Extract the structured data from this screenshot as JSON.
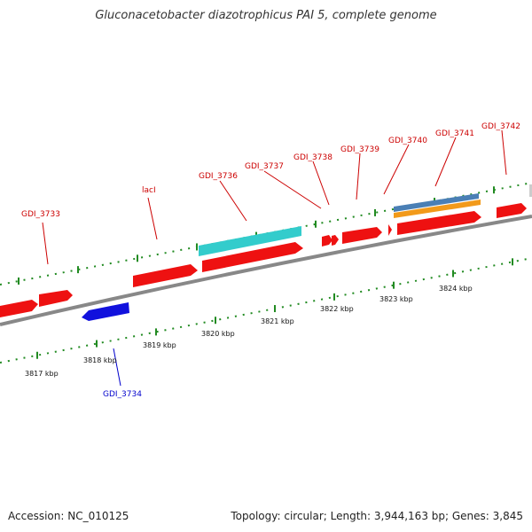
{
  "title": "Gluconacetobacter diazotrophicus PAI 5, complete genome",
  "footer": {
    "accession": "Accession: NC_010125",
    "summary": "Topology: circular; Length: 3,944,163 bp; Genes: 3,845"
  },
  "colors": {
    "forward_gene": "#ee1111",
    "reverse_gene": "#1111dd",
    "rna_gene": "#33cccc",
    "blue_feature": "#4a7fb5",
    "orange_feature": "#f29a1a",
    "backbone": "#888888",
    "tick": "#228b22",
    "forward_label": "#cc0000",
    "reverse_label": "#0000cc"
  },
  "scale_labels": [
    "3817 kbp",
    "3818 kbp",
    "3819 kbp",
    "3820 kbp",
    "3821 kbp",
    "3822 kbp",
    "3823 kbp",
    "3824 kbp"
  ],
  "gene_labels": [
    {
      "id": "gdi3733",
      "text": "GDI_3733",
      "strand": "forward"
    },
    {
      "id": "lacI",
      "text": "lacI",
      "strand": "forward"
    },
    {
      "id": "gdi3736",
      "text": "GDI_3736",
      "strand": "forward"
    },
    {
      "id": "gdi3737",
      "text": "GDI_3737",
      "strand": "forward"
    },
    {
      "id": "gdi3738",
      "text": "GDI_3738",
      "strand": "forward"
    },
    {
      "id": "gdi3739",
      "text": "GDI_3739",
      "strand": "forward"
    },
    {
      "id": "gdi3740",
      "text": "GDI_3740",
      "strand": "forward"
    },
    {
      "id": "gdi3741",
      "text": "GDI_3741",
      "strand": "forward"
    },
    {
      "id": "gdi3742",
      "text": "GDI_3742",
      "strand": "forward"
    },
    {
      "id": "gdi3734",
      "text": "GDI_3734",
      "strand": "reverse"
    }
  ]
}
